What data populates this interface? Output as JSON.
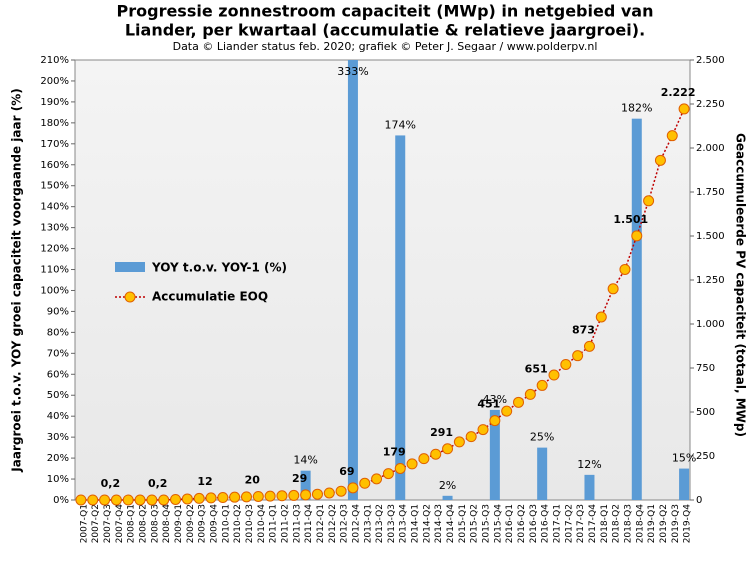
{
  "chart_data": {
    "type": "bar_line",
    "title": "Progressie zonnestroom capaciteit (MWp) in netgebied van",
    "title_line2": "Liander, per kwartaal (accumulatie & relatieve jaargroei).",
    "subtitle": "Data © Liander status feb. 2020; grafiek © Peter J. Segaar / www.polderpv.nl",
    "ylabel": "Jaargroei t.o.v. YOY groei capaciteit voorgaande jaar (%)",
    "y2label": "Geaccumuleerde PV capaciteit (totaal, MWp)",
    "categories": [
      "2007-Q1",
      "2007-Q2",
      "2007-Q3",
      "2007-Q4",
      "2008-Q1",
      "2008-Q2",
      "2008-Q3",
      "2008-Q4",
      "2009-Q1",
      "2009-Q2",
      "2009-Q3",
      "2009-Q4",
      "2010-Q1",
      "2010-Q2",
      "2010-Q3",
      "2010-Q4",
      "2011-Q1",
      "2011-Q2",
      "2011-Q3",
      "2011-Q4",
      "2012-Q1",
      "2012-Q2",
      "2012-Q3",
      "2012-Q4",
      "2013-Q1",
      "2013-Q2",
      "2013-Q3",
      "2013-Q4",
      "2014-Q1",
      "2014-Q2",
      "2014-Q3",
      "2014-Q4",
      "2015-Q1",
      "2015-Q2",
      "2015-Q3",
      "2015-Q4",
      "2016-Q1",
      "2016-Q2",
      "2016-Q3",
      "2016-Q4",
      "2017-Q1",
      "2017-Q2",
      "2017-Q3",
      "2017-Q4",
      "2018-Q1",
      "2018-Q2",
      "2018-Q3",
      "2018-Q4",
      "2019-Q1",
      "2019-Q2",
      "2019-Q3",
      "2019-Q4"
    ],
    "series": [
      {
        "name": "YOY t.o.v. YOY-1 (%)",
        "color": "#5b9bd5",
        "axis": "y",
        "values": [
          null,
          null,
          null,
          null,
          null,
          null,
          null,
          null,
          null,
          null,
          null,
          null,
          null,
          null,
          null,
          null,
          null,
          null,
          null,
          14,
          null,
          null,
          null,
          333,
          null,
          null,
          null,
          174,
          null,
          null,
          null,
          2,
          null,
          null,
          null,
          43,
          null,
          null,
          null,
          25,
          null,
          null,
          null,
          12,
          null,
          null,
          null,
          182,
          null,
          null,
          null,
          15
        ],
        "value_labels": [
          null,
          null,
          null,
          null,
          null,
          null,
          null,
          null,
          null,
          null,
          null,
          null,
          null,
          null,
          null,
          null,
          null,
          null,
          null,
          "14%",
          null,
          null,
          null,
          "333%",
          null,
          null,
          null,
          "174%",
          null,
          null,
          null,
          "2%",
          null,
          null,
          null,
          "43%",
          null,
          null,
          null,
          "25%",
          null,
          null,
          null,
          "12%",
          null,
          null,
          null,
          "182%",
          null,
          null,
          null,
          "15%"
        ]
      },
      {
        "name": "Accumulatie EOQ",
        "color": "#c00000",
        "marker_color": "#ffc000",
        "axis": "y2",
        "values": [
          0.05,
          0.1,
          0.15,
          0.2,
          0.2,
          0.2,
          0.2,
          0.2,
          3,
          6,
          9,
          12,
          14,
          16,
          18,
          20,
          22,
          24,
          26,
          29,
          33,
          40,
          50,
          69,
          95,
          120,
          150,
          179,
          205,
          235,
          260,
          291,
          330,
          360,
          400,
          451,
          505,
          555,
          600,
          651,
          710,
          770,
          820,
          873,
          1040,
          1200,
          1310,
          1501,
          1700,
          1930,
          2070,
          2222
        ],
        "value_labels": [
          null,
          null,
          null,
          "0,2",
          null,
          null,
          null,
          "0,2",
          null,
          null,
          null,
          "12",
          null,
          null,
          null,
          "20",
          null,
          null,
          null,
          "29",
          null,
          null,
          null,
          "69",
          null,
          null,
          null,
          "179",
          null,
          null,
          null,
          "291",
          null,
          null,
          null,
          "451",
          null,
          null,
          null,
          "651",
          null,
          null,
          null,
          "873",
          null,
          null,
          null,
          "1.501",
          null,
          null,
          null,
          "2.222"
        ]
      }
    ],
    "ylim": [
      0,
      210
    ],
    "yticks": [
      {
        "value": 0,
        "label": "0%"
      },
      {
        "value": 10,
        "label": "10%"
      },
      {
        "value": 20,
        "label": "20%"
      },
      {
        "value": 30,
        "label": "30%"
      },
      {
        "value": 40,
        "label": "40%"
      },
      {
        "value": 50,
        "label": "50%"
      },
      {
        "value": 60,
        "label": "60%"
      },
      {
        "value": 70,
        "label": "70%"
      },
      {
        "value": 80,
        "label": "80%"
      },
      {
        "value": 90,
        "label": "90%"
      },
      {
        "value": 100,
        "label": "100%"
      },
      {
        "value": 110,
        "label": "110%"
      },
      {
        "value": 120,
        "label": "120%"
      },
      {
        "value": 130,
        "label": "130%"
      },
      {
        "value": 140,
        "label": "140%"
      },
      {
        "value": 150,
        "label": "150%"
      },
      {
        "value": 160,
        "label": "160%"
      },
      {
        "value": 170,
        "label": "170%"
      },
      {
        "value": 180,
        "label": "180%"
      },
      {
        "value": 190,
        "label": "190%"
      },
      {
        "value": 200,
        "label": "200%"
      },
      {
        "value": 210,
        "label": "210%"
      }
    ],
    "y2lim": [
      0,
      2500
    ],
    "y2ticks": [
      0,
      250,
      500,
      750,
      {
        "value": 1000,
        "label": "1.000"
      },
      {
        "value": 1250,
        "label": "1.250"
      },
      {
        "value": 1500,
        "label": "1.500"
      },
      {
        "value": 1750,
        "label": "1.750"
      },
      {
        "value": 2000,
        "label": "2.000"
      },
      {
        "value": 2250,
        "label": "2.250"
      },
      {
        "value": 2500,
        "label": "2.500"
      }
    ],
    "grid": false
  }
}
